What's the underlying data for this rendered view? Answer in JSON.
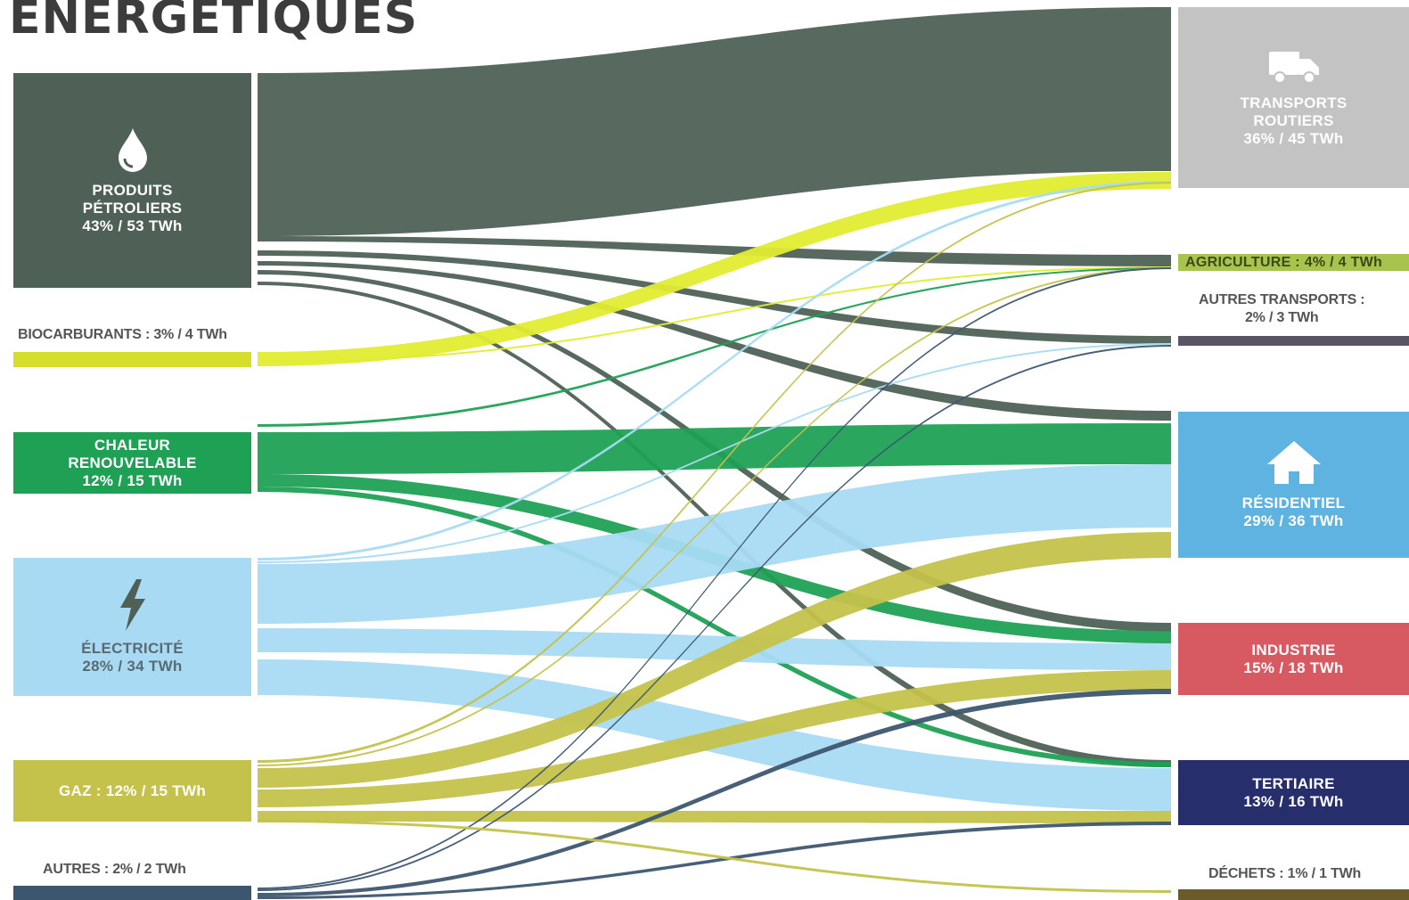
{
  "title": "ÉNERGÉTIQUES",
  "sources": {
    "petrole": {
      "name": "PRODUITS\nPÉTROLIERS",
      "value": "43% / 53 TWh",
      "icon": "drop-icon",
      "color": "#4f6156"
    },
    "biocarburants": {
      "label": "BIOCARBURANTS : 3% / 4 TWh",
      "color": "#d6dd2b"
    },
    "chaleur": {
      "name": "CHALEUR\nRENOUVELABLE",
      "value": "12% / 15 TWh",
      "color": "#1fa155"
    },
    "electricite": {
      "name": "ÉLECTRICITÉ",
      "value": "28% / 34 TWh",
      "icon": "lightning-icon",
      "color": "#a8dbf3"
    },
    "gaz": {
      "label": "GAZ : 12% / 15 TWh",
      "color": "#c4c24a"
    },
    "autres": {
      "label": "AUTRES : 2% / 2 TWh",
      "color": "#3d5670"
    }
  },
  "sectors": {
    "transports": {
      "name": "TRANSPORTS\nROUTIERS",
      "value": "36% / 45 TWh",
      "icon": "truck-icon",
      "color": "#c3c3c3"
    },
    "agriculture": {
      "label": "AGRICULTURE : 4% / 4 TWh",
      "color": "#a7c44e"
    },
    "autres_transports": {
      "label": "AUTRES TRANSPORTS :\n2% / 3 TWh",
      "color": "#5b5466"
    },
    "residentiel": {
      "name": "RÉSIDENTIEL",
      "value": "29% / 36 TWh",
      "icon": "house-icon",
      "color": "#5fb3e0"
    },
    "industrie": {
      "name": "INDUSTRIE",
      "value": "15% / 18 TWh",
      "color": "#d75a62"
    },
    "tertiaire": {
      "name": "TERTIAIRE",
      "value": "13% / 16 TWh",
      "color": "#262e6b"
    },
    "dechets": {
      "label": "DÉCHETS : 1% / 1 TWh",
      "color": "#6b5a2a"
    }
  }
}
